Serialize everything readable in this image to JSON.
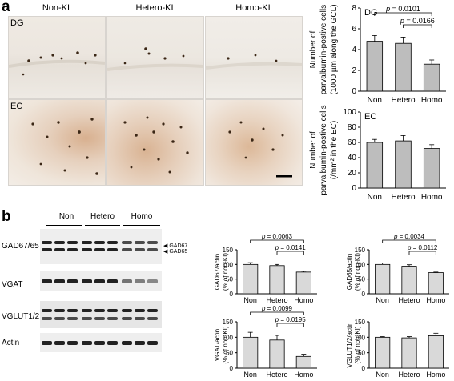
{
  "panel_a": {
    "letter": "a",
    "columns": [
      "Non-KI",
      "Hetero-KI",
      "Homo-KI"
    ],
    "rows": [
      "DG",
      "EC"
    ]
  },
  "panel_b": {
    "letter": "b",
    "groups": [
      "Non",
      "Hetero",
      "Homo"
    ],
    "rows": [
      "GAD67/65",
      "VGAT",
      "VGLUT1/2",
      "Actin"
    ],
    "band_markers": [
      "GAD67",
      "GAD65"
    ]
  },
  "chart_data": [
    {
      "id": "dg",
      "type": "bar",
      "title": "DG",
      "categories": [
        "Non",
        "Hetero",
        "Homo"
      ],
      "values": [
        4.8,
        4.6,
        2.6
      ],
      "errors": [
        0.55,
        0.6,
        0.4
      ],
      "ylabel": [
        "Number of",
        "parvalbumin-postive cells",
        "(1000 µm along the GCL)"
      ],
      "ylim": [
        0,
        8
      ],
      "yticks": [
        0,
        2,
        4,
        6,
        8
      ],
      "brackets": [
        {
          "from": 0,
          "to": 2,
          "label": "p = 0.0101"
        },
        {
          "from": 1,
          "to": 2,
          "label": "p = 0.0166"
        }
      ],
      "bar_color": "#bdbdbd"
    },
    {
      "id": "ec",
      "type": "bar",
      "title": "EC",
      "categories": [
        "Non",
        "Hetero",
        "Homo"
      ],
      "values": [
        60,
        62,
        52
      ],
      "errors": [
        4,
        7,
        5
      ],
      "ylabel": [
        "Number of",
        "parvalbumin-postive cells",
        "(/mm² in the EC)"
      ],
      "ylim": [
        0,
        100
      ],
      "yticks": [
        0,
        20,
        40,
        60,
        80,
        100
      ],
      "brackets": [],
      "bar_color": "#bdbdbd"
    },
    {
      "id": "gad67",
      "type": "bar",
      "categories": [
        "Non",
        "Hetero",
        "Homo"
      ],
      "values": [
        100,
        96,
        74
      ],
      "errors": [
        6,
        4,
        3
      ],
      "ylabel": [
        "GAD67/actin",
        "(% of non-KI)"
      ],
      "ylim": [
        0,
        150
      ],
      "yticks": [
        0,
        50,
        100,
        150
      ],
      "brackets": [
        {
          "from": 0,
          "to": 2,
          "label": "p = 0.0063"
        },
        {
          "from": 1,
          "to": 2,
          "label": "p = 0.0141"
        }
      ],
      "bar_color": "#d9d9d9"
    },
    {
      "id": "gad65",
      "type": "bar",
      "categories": [
        "Non",
        "Hetero",
        "Homo"
      ],
      "values": [
        100,
        94,
        72
      ],
      "errors": [
        5,
        5,
        2
      ],
      "ylabel": [
        "GAD65/actin",
        "(% of non-KI)"
      ],
      "ylim": [
        0,
        150
      ],
      "yticks": [
        0,
        50,
        100,
        150
      ],
      "brackets": [
        {
          "from": 0,
          "to": 2,
          "label": "p = 0.0034"
        },
        {
          "from": 1,
          "to": 2,
          "label": "p = 0.0112"
        }
      ],
      "bar_color": "#d9d9d9"
    },
    {
      "id": "vgat",
      "type": "bar",
      "categories": [
        "Non",
        "Hetero",
        "Homo"
      ],
      "values": [
        100,
        91,
        38
      ],
      "errors": [
        16,
        15,
        7
      ],
      "ylabel": [
        "VGAT/actin",
        "(% of non-KI)"
      ],
      "ylim": [
        0,
        150
      ],
      "yticks": [
        0,
        50,
        100,
        150
      ],
      "brackets": [
        {
          "from": 0,
          "to": 2,
          "label": "p = 0.0099"
        },
        {
          "from": 1,
          "to": 2,
          "label": "p = 0.0195"
        }
      ],
      "bar_color": "#d9d9d9"
    },
    {
      "id": "vglut",
      "type": "bar",
      "categories": [
        "Non",
        "Hetero",
        "Homo"
      ],
      "values": [
        100,
        98,
        105
      ],
      "errors": [
        2,
        4,
        8
      ],
      "ylabel": [
        "VGLUT1/2/actin",
        "(% of non-KI)"
      ],
      "ylim": [
        0,
        150
      ],
      "yticks": [
        0,
        50,
        100,
        150
      ],
      "brackets": [],
      "bar_color": "#d9d9d9"
    }
  ]
}
